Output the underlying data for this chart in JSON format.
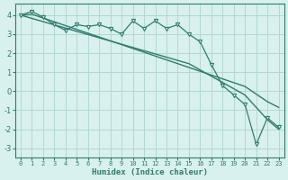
{
  "xlabel": "Humidex (Indice chaleur)",
  "background_color": "#d8f0ee",
  "line_color": "#2e7d6e",
  "grid_color": "#b2d8d2",
  "xlim": [
    -0.5,
    23.5
  ],
  "ylim": [
    -3.5,
    4.6
  ],
  "yticks": [
    -3,
    -2,
    -1,
    0,
    1,
    2,
    3,
    4
  ],
  "xticks": [
    0,
    1,
    2,
    3,
    4,
    5,
    6,
    7,
    8,
    9,
    10,
    11,
    12,
    13,
    14,
    15,
    16,
    17,
    18,
    19,
    20,
    21,
    22,
    23
  ],
  "x": [
    0,
    1,
    2,
    3,
    4,
    5,
    6,
    7,
    8,
    9,
    10,
    11,
    12,
    13,
    14,
    15,
    16,
    17,
    18,
    19,
    20,
    21,
    22,
    23
  ],
  "y_main": [
    4.0,
    4.2,
    3.9,
    3.5,
    3.2,
    3.5,
    3.4,
    3.5,
    3.3,
    3.0,
    3.7,
    3.3,
    3.7,
    3.3,
    3.5,
    3.0,
    2.6,
    1.4,
    0.3,
    -0.2,
    -0.7,
    -2.8,
    -1.4,
    -1.9
  ],
  "y_smooth": [
    4.0,
    4.05,
    3.85,
    3.65,
    3.45,
    3.25,
    3.05,
    2.85,
    2.65,
    2.45,
    2.25,
    2.05,
    1.85,
    1.65,
    1.45,
    1.25,
    1.05,
    0.85,
    0.65,
    0.45,
    0.25,
    -0.15,
    -0.55,
    -0.85
  ],
  "y_trend": [
    4.0,
    3.83,
    3.66,
    3.49,
    3.32,
    3.15,
    2.98,
    2.81,
    2.64,
    2.47,
    2.3,
    2.13,
    1.96,
    1.79,
    1.62,
    1.45,
    1.12,
    0.79,
    0.46,
    0.13,
    -0.2,
    -0.85,
    -1.5,
    -2.0
  ],
  "marker_size": 3
}
